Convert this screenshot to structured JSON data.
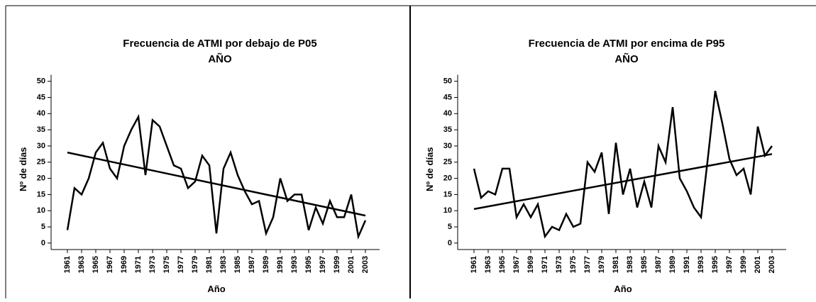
{
  "chart_data": [
    {
      "type": "line",
      "title": "Frecuencia de ATMI por debajo de P05",
      "subtitle": "AÑO",
      "xlabel": "Año",
      "ylabel": "Nº de días",
      "color": "#000000",
      "x": [
        1961,
        1962,
        1963,
        1964,
        1965,
        1966,
        1967,
        1968,
        1969,
        1970,
        1971,
        1972,
        1973,
        1974,
        1975,
        1976,
        1977,
        1978,
        1979,
        1980,
        1981,
        1982,
        1983,
        1984,
        1985,
        1986,
        1987,
        1988,
        1989,
        1990,
        1991,
        1992,
        1993,
        1994,
        1995,
        1996,
        1997,
        1998,
        1999,
        2000,
        2001,
        2002,
        2003
      ],
      "values": [
        4,
        17,
        15,
        20,
        28,
        31,
        23,
        20,
        30,
        35,
        39,
        21,
        38,
        36,
        30,
        24,
        23,
        17,
        19,
        27,
        24,
        3,
        23,
        28,
        21,
        16,
        12,
        13,
        3,
        8,
        20,
        13,
        15,
        15,
        4,
        11,
        6,
        13,
        8,
        8,
        15,
        2,
        7
      ],
      "trend": {
        "x": [
          1961,
          2003
        ],
        "values": [
          28,
          8.5
        ]
      },
      "xlim": [
        1959,
        2005
      ],
      "xticks": [
        1961,
        1963,
        1965,
        1967,
        1969,
        1971,
        1973,
        1975,
        1977,
        1979,
        1981,
        1983,
        1985,
        1987,
        1989,
        1991,
        1993,
        1995,
        1997,
        1999,
        2001,
        2003
      ],
      "ylim": [
        -2,
        52
      ],
      "yticks": [
        0,
        5,
        10,
        15,
        20,
        25,
        30,
        35,
        40,
        45,
        50
      ]
    },
    {
      "type": "line",
      "title": "Frecuencia de ATMI por encima de P95",
      "subtitle": "AÑO",
      "xlabel": "Año",
      "ylabel": "Nº de días",
      "color": "#000000",
      "x": [
        1961,
        1962,
        1963,
        1964,
        1965,
        1966,
        1967,
        1968,
        1969,
        1970,
        1971,
        1972,
        1973,
        1974,
        1975,
        1976,
        1977,
        1978,
        1979,
        1980,
        1981,
        1982,
        1983,
        1984,
        1985,
        1986,
        1987,
        1988,
        1989,
        1990,
        1991,
        1992,
        1993,
        1994,
        1995,
        1996,
        1997,
        1998,
        1999,
        2000,
        2001,
        2002,
        2003
      ],
      "values": [
        23,
        14,
        16,
        15,
        23,
        23,
        8,
        12,
        8,
        12,
        2,
        5,
        4,
        9,
        5,
        6,
        25,
        22,
        28,
        9,
        31,
        15,
        23,
        11,
        19,
        11,
        30,
        25,
        42,
        20,
        16,
        11,
        8,
        27,
        47,
        37,
        26,
        21,
        23,
        15,
        36,
        27,
        30
      ],
      "trend": {
        "x": [
          1961,
          2003
        ],
        "values": [
          10.5,
          27.5
        ]
      },
      "xlim": [
        1959,
        2005
      ],
      "xticks": [
        1961,
        1963,
        1965,
        1967,
        1969,
        1971,
        1973,
        1975,
        1977,
        1979,
        1981,
        1983,
        1985,
        1987,
        1989,
        1991,
        1993,
        1995,
        1997,
        1999,
        2001,
        2003
      ],
      "ylim": [
        -2,
        52
      ],
      "yticks": [
        0,
        5,
        10,
        15,
        20,
        25,
        30,
        35,
        40,
        45,
        50
      ]
    }
  ]
}
